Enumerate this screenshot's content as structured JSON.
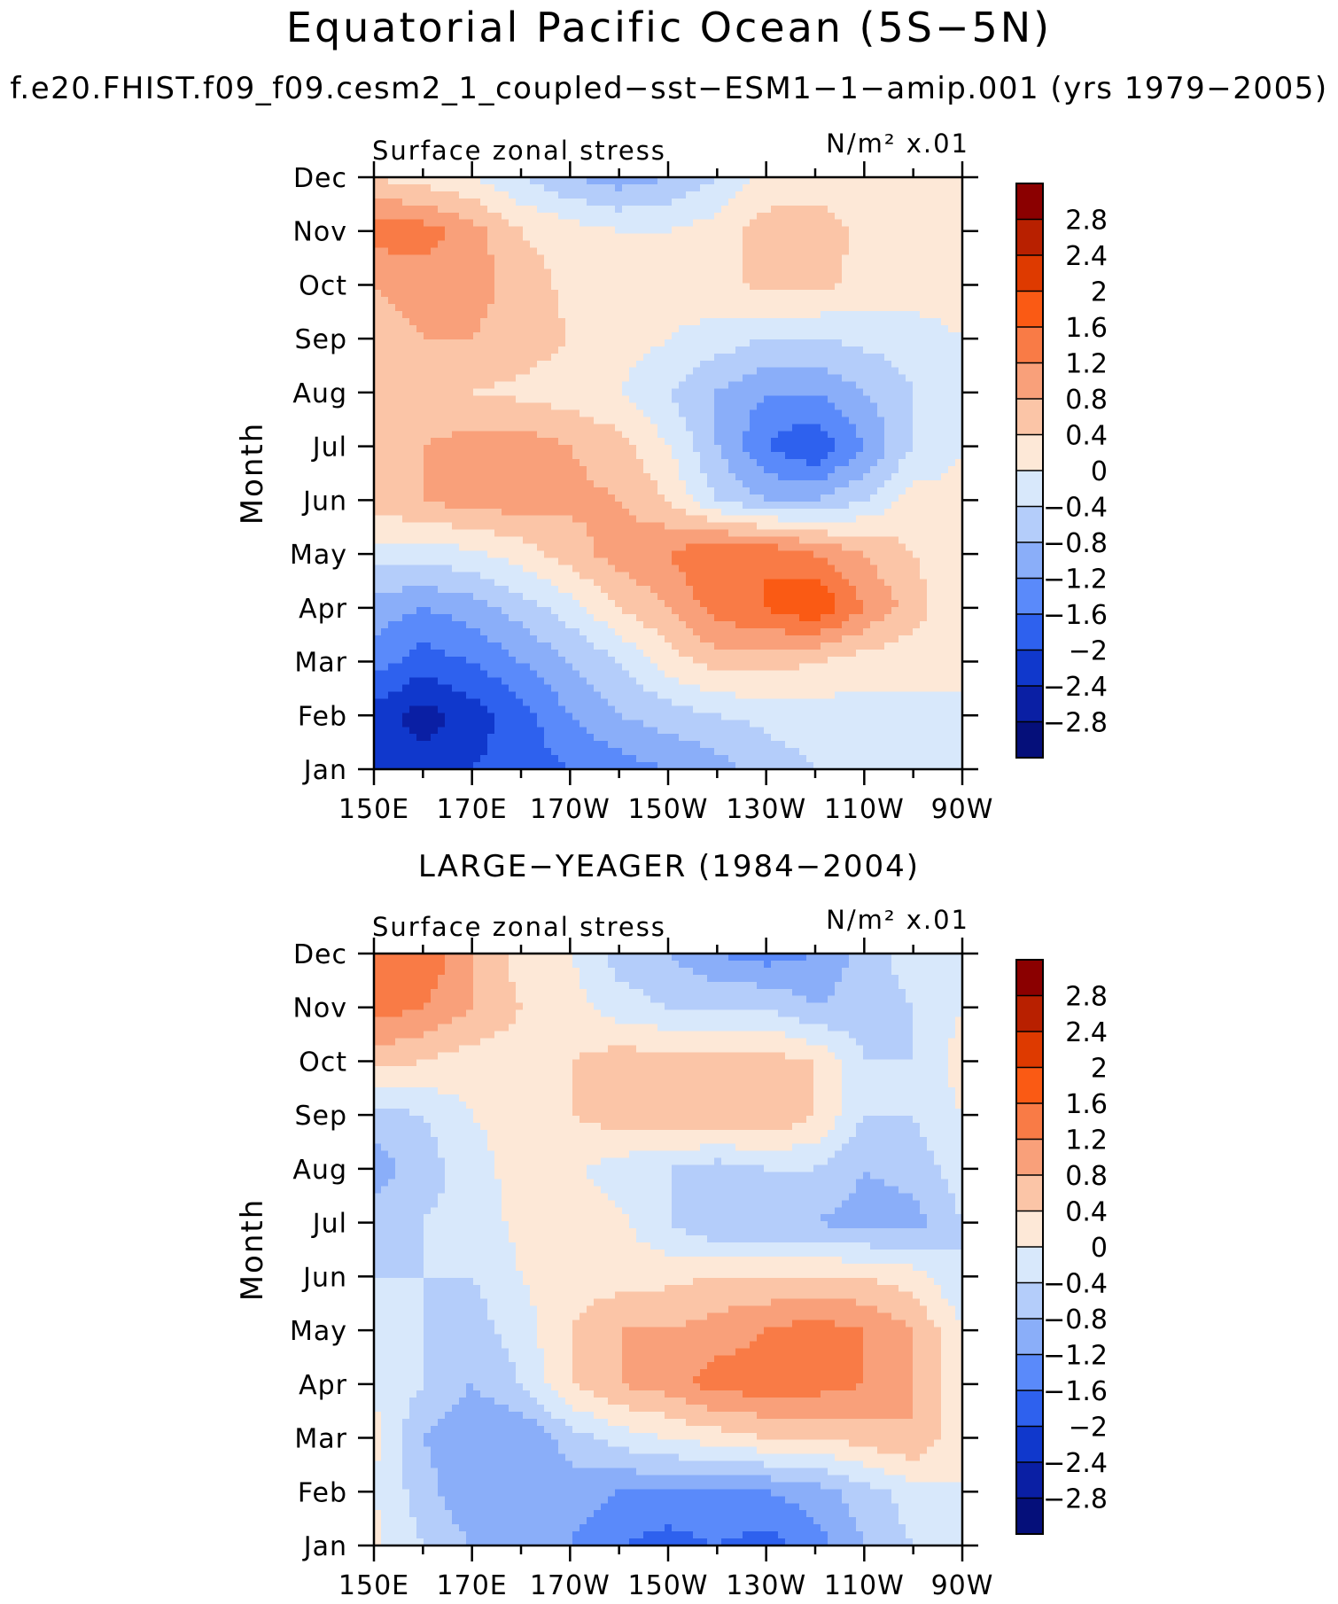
{
  "figure": {
    "title": "Equatorial Pacific Ocean (5S−5N)",
    "subtitle": "f.e20.FHIST.f09_f09.cesm2_1_coupled−sst−ESM1−1−amip.001 (yrs 1979−2005)",
    "panel2_title": "LARGE−YEAGER (1984−2004)"
  },
  "chart_data": [
    {
      "type": "heatmap",
      "title": "Surface zonal stress",
      "units_label": "N/m² x.01",
      "ylabel": "Month",
      "x_ticks": [
        "150E",
        "170E",
        "170W",
        "150W",
        "130W",
        "110W",
        "90W"
      ],
      "y_ticks": [
        "Jan",
        "Feb",
        "Mar",
        "Apr",
        "May",
        "Jun",
        "Jul",
        "Aug",
        "Sep",
        "Oct",
        "Nov",
        "Dec"
      ],
      "x_lon": [
        150,
        160,
        170,
        180,
        190,
        200,
        210,
        220,
        230,
        240,
        250,
        260,
        270
      ],
      "values": [
        [
          -2.0,
          -2.2,
          -2.0,
          -1.8,
          -1.6,
          -1.4,
          -1.2,
          -1.0,
          -0.6,
          -0.4,
          -0.2,
          -0.1,
          0.0
        ],
        [
          -2.2,
          -2.6,
          -2.2,
          -1.8,
          -1.2,
          -0.8,
          -0.6,
          -0.4,
          -0.3,
          -0.2,
          -0.2,
          -0.1,
          0.0
        ],
        [
          -1.4,
          -1.8,
          -1.6,
          -1.2,
          -0.8,
          -0.4,
          0.2,
          0.6,
          0.6,
          0.4,
          0.2,
          0.1,
          0.0
        ],
        [
          -1.0,
          -1.2,
          -1.0,
          -0.6,
          -0.2,
          0.4,
          0.8,
          1.4,
          1.6,
          2.0,
          1.2,
          0.6,
          0.0
        ],
        [
          -0.2,
          -0.2,
          -0.1,
          0.2,
          0.6,
          1.0,
          1.2,
          1.6,
          1.6,
          1.2,
          0.8,
          0.4,
          0.1
        ],
        [
          0.6,
          0.8,
          1.0,
          1.0,
          0.9,
          0.8,
          0.4,
          -0.4,
          -0.8,
          -0.8,
          -0.4,
          0.2,
          0.1
        ],
        [
          0.4,
          0.8,
          1.0,
          1.0,
          0.8,
          0.6,
          0.0,
          -0.8,
          -1.6,
          -2.0,
          -1.2,
          -0.4,
          0.0
        ],
        [
          0.4,
          0.4,
          0.4,
          0.3,
          0.2,
          0.0,
          -0.4,
          -0.8,
          -1.2,
          -1.2,
          -0.8,
          -0.4,
          0.0
        ],
        [
          0.6,
          0.8,
          0.8,
          0.6,
          0.4,
          0.2,
          0.0,
          -0.2,
          -0.4,
          -0.4,
          -0.3,
          -0.2,
          0.0
        ],
        [
          0.8,
          1.0,
          1.0,
          0.6,
          0.3,
          0.2,
          0.2,
          0.3,
          0.5,
          0.5,
          0.3,
          0.2,
          0.2
        ],
        [
          1.4,
          1.4,
          1.0,
          0.4,
          0.2,
          0.0,
          0.0,
          0.2,
          0.6,
          0.6,
          0.3,
          0.2,
          0.4
        ],
        [
          0.4,
          0.2,
          0.0,
          -0.4,
          -0.8,
          -1.0,
          -0.8,
          -0.4,
          0.1,
          0.2,
          0.2,
          0.2,
          0.4
        ]
      ]
    },
    {
      "type": "heatmap",
      "title": "Surface zonal stress",
      "units_label": "N/m² x.01",
      "ylabel": "Month",
      "x_ticks": [
        "150E",
        "170E",
        "170W",
        "150W",
        "130W",
        "110W",
        "90W"
      ],
      "y_ticks": [
        "Jan",
        "Feb",
        "Mar",
        "Apr",
        "May",
        "Jun",
        "Jul",
        "Aug",
        "Sep",
        "Oct",
        "Nov",
        "Dec"
      ],
      "x_lon": [
        150,
        160,
        170,
        180,
        190,
        200,
        210,
        220,
        230,
        240,
        250,
        260,
        270
      ],
      "values": [
        [
          0.1,
          -0.4,
          -0.8,
          -1.0,
          -1.2,
          -1.6,
          -1.8,
          -1.6,
          -1.8,
          -1.4,
          -0.8,
          -0.4,
          0.0
        ],
        [
          0.0,
          -0.6,
          -1.2,
          -1.2,
          -1.0,
          -1.2,
          -1.2,
          -1.2,
          -1.2,
          -1.0,
          -0.6,
          -0.2,
          0.0
        ],
        [
          0.1,
          -0.8,
          -1.2,
          -1.2,
          -0.6,
          -0.2,
          0.0,
          0.2,
          0.4,
          0.4,
          0.6,
          0.8,
          0.0
        ],
        [
          0.0,
          -0.4,
          -0.8,
          -0.4,
          0.4,
          0.8,
          1.0,
          1.4,
          1.4,
          1.4,
          1.2,
          0.8,
          0.0
        ],
        [
          -0.2,
          -0.4,
          -0.6,
          -0.2,
          0.4,
          0.8,
          0.8,
          1.0,
          1.2,
          1.4,
          1.2,
          0.8,
          0.0
        ],
        [
          -0.4,
          -0.4,
          -0.4,
          0.0,
          0.2,
          0.2,
          0.3,
          0.4,
          0.4,
          0.4,
          0.4,
          0.2,
          -0.4
        ],
        [
          -0.6,
          -0.4,
          -0.2,
          0.1,
          0.2,
          0.1,
          -0.4,
          -0.8,
          -0.8,
          -0.8,
          -1.0,
          -1.0,
          -0.4
        ],
        [
          -1.0,
          -0.6,
          -0.2,
          0.2,
          0.1,
          -0.2,
          -0.4,
          -0.6,
          -0.4,
          -0.4,
          -0.8,
          -0.6,
          -0.2
        ],
        [
          -0.6,
          -0.4,
          0.0,
          0.2,
          0.4,
          0.6,
          0.8,
          0.8,
          0.8,
          0.4,
          -0.4,
          -0.4,
          0.0
        ],
        [
          0.6,
          0.4,
          0.2,
          0.2,
          0.4,
          0.6,
          0.6,
          0.6,
          0.6,
          0.4,
          -0.4,
          -0.4,
          0.2
        ],
        [
          1.4,
          1.2,
          0.8,
          0.4,
          0.2,
          -0.2,
          -0.4,
          -0.4,
          -0.4,
          -0.8,
          -0.6,
          -0.4,
          0.0
        ],
        [
          1.6,
          1.6,
          0.8,
          0.2,
          0.0,
          -0.6,
          -0.8,
          -1.2,
          -1.4,
          -1.2,
          -0.6,
          -0.2,
          0.0
        ]
      ]
    }
  ],
  "colorbar": {
    "levels": [
      "2.8",
      "2.4",
      "2",
      "1.6",
      "1.2",
      "0.8",
      "0.4",
      "0",
      "−0.4",
      "−0.8",
      "−1.2",
      "−1.6",
      "−2",
      "−2.4",
      "−2.8"
    ],
    "thresholds": [
      2.8,
      2.4,
      2.0,
      1.6,
      1.2,
      0.8,
      0.4,
      0.0,
      -0.4,
      -0.8,
      -1.2,
      -1.6,
      -2.0,
      -2.4,
      -2.8
    ],
    "colors": [
      "#8b0000",
      "#b82000",
      "#de3a00",
      "#fa5a14",
      "#f97b46",
      "#f9a07a",
      "#fbc5a7",
      "#fde8d7",
      "#d8e8fb",
      "#b4cdfa",
      "#8aaef9",
      "#5a8afa",
      "#2e61ee",
      "#1038cc",
      "#0a1fa4",
      "#050f7a"
    ]
  }
}
